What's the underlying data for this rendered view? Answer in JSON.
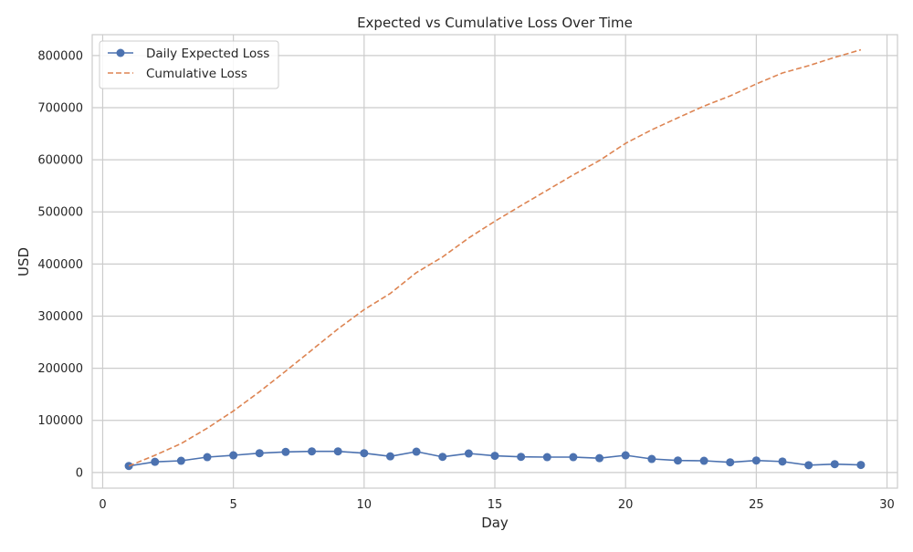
{
  "chart_data": {
    "type": "line",
    "title": "Expected vs Cumulative Loss Over Time",
    "xlabel": "Day",
    "ylabel": "USD",
    "xlim": [
      -0.4,
      30.4
    ],
    "ylim": [
      -30000,
      840000
    ],
    "xticks": [
      0,
      5,
      10,
      15,
      20,
      25,
      30
    ],
    "yticks": [
      0,
      100000,
      200000,
      300000,
      400000,
      500000,
      600000,
      700000,
      800000
    ],
    "grid": true,
    "legend_position": "top-left",
    "x": [
      1,
      2,
      3,
      4,
      5,
      6,
      7,
      8,
      9,
      10,
      11,
      12,
      13,
      14,
      15,
      16,
      17,
      18,
      19,
      20,
      21,
      22,
      23,
      24,
      25,
      26,
      27,
      28,
      29
    ],
    "series": [
      {
        "name": "Daily Expected Loss",
        "style": "solid-with-circle-markers",
        "color": "#4c72b0",
        "values": [
          12500,
          20500,
          22500,
          29500,
          33000,
          37000,
          39500,
          40500,
          40500,
          37000,
          31000,
          40000,
          30000,
          36500,
          32000,
          30000,
          29500,
          29500,
          27500,
          33000,
          26000,
          23000,
          22500,
          19500,
          23000,
          21000,
          14000,
          16000,
          14500
        ]
      },
      {
        "name": "Cumulative Loss",
        "style": "dashed",
        "color": "#dd8452",
        "values": [
          12500,
          33000,
          55500,
          85000,
          118000,
          155000,
          194500,
          235000,
          275500,
          312500,
          343500,
          383500,
          413500,
          450000,
          482000,
          512000,
          541500,
          571000,
          598500,
          631500,
          657500,
          680500,
          703000,
          722500,
          745500,
          766500,
          780500,
          796500,
          811000
        ]
      }
    ]
  }
}
